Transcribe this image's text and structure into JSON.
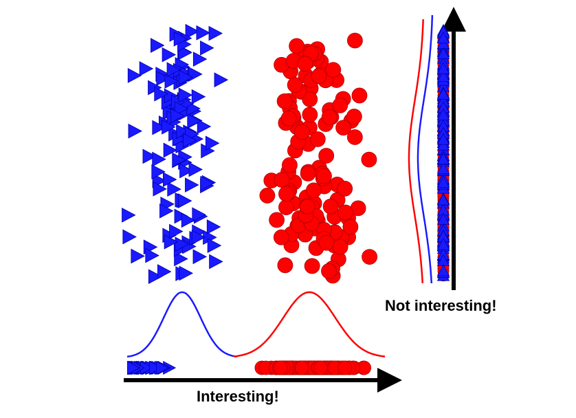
{
  "labels": {
    "bottom_axis": "Interesting!",
    "vertical_axis": "Not interesting!"
  },
  "colors": {
    "class_a": "#1a1aff",
    "class_b": "#ff0000",
    "outline": "#b00000",
    "axis": "#000000"
  },
  "class_a": {
    "marker": "triangle",
    "seed": 7,
    "count": 125,
    "x_center": 262,
    "x_spread": 32,
    "y_range": [
      45,
      405
    ]
  },
  "class_b": {
    "marker": "circle",
    "seed": 19,
    "count": 120,
    "x_center": 458,
    "x_spread": 34,
    "y_range": [
      55,
      405
    ]
  }
}
